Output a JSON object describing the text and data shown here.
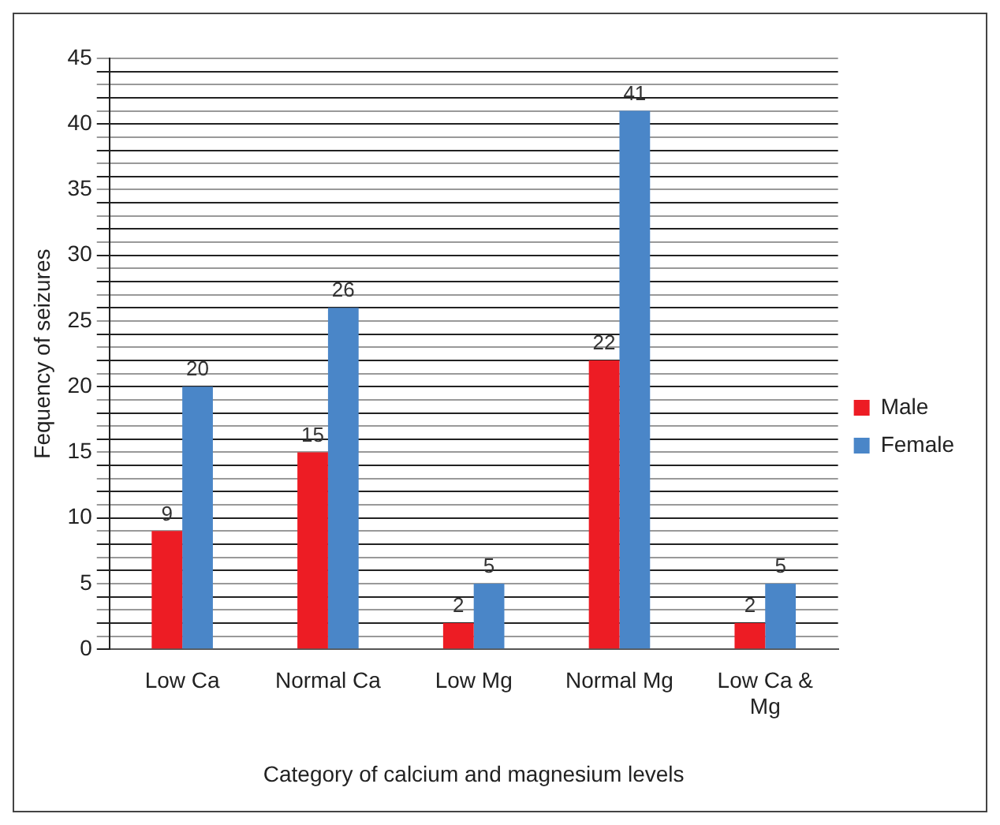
{
  "chart_data": {
    "type": "bar",
    "xlabel": "Category of calcium and magnesium levels",
    "ylabel": "Fequency of seizures",
    "categories": [
      "Low Ca",
      "Normal Ca",
      "Low Mg",
      "Normal Mg",
      "Low Ca & Mg"
    ],
    "series": [
      {
        "name": "Male",
        "color": "#ed1c24",
        "values": [
          9,
          15,
          2,
          22,
          2
        ]
      },
      {
        "name": "Female",
        "color": "#4a86c8",
        "values": [
          20,
          26,
          5,
          41,
          5
        ]
      }
    ],
    "ylim": [
      0,
      45
    ],
    "yticks": [
      0,
      {
        "value": 1,
        "label": null
      },
      {
        "value": 2,
        "label": null
      },
      {
        "value": 3,
        "label": null
      },
      {
        "value": 4,
        "label": null
      },
      5,
      {
        "value": 6,
        "label": null
      },
      {
        "value": 7,
        "label": null
      },
      {
        "value": 8,
        "label": null
      },
      {
        "value": 9,
        "label": null
      },
      10,
      {
        "value": 11,
        "label": null
      },
      {
        "value": 12,
        "label": null
      },
      {
        "value": 13,
        "label": null
      },
      {
        "value": 14,
        "label": null
      },
      15,
      {
        "value": 16,
        "label": null
      },
      {
        "value": 17,
        "label": null
      },
      {
        "value": 18,
        "label": null
      },
      {
        "value": 19,
        "label": null
      },
      20,
      {
        "value": 21,
        "label": null
      },
      {
        "value": 22,
        "label": null
      },
      {
        "value": 23,
        "label": null
      },
      {
        "value": 24,
        "label": null
      },
      25,
      {
        "value": 26,
        "label": null
      },
      {
        "value": 27,
        "label": null
      },
      {
        "value": 28,
        "label": null
      },
      {
        "value": 29,
        "label": null
      },
      30,
      {
        "value": 31,
        "label": null
      },
      {
        "value": 32,
        "label": null
      },
      {
        "value": 33,
        "label": null
      },
      {
        "value": 34,
        "label": null
      },
      35,
      {
        "value": 36,
        "label": null
      },
      {
        "value": 37,
        "label": null
      },
      {
        "value": 38,
        "label": null
      },
      {
        "value": 39,
        "label": null
      },
      40,
      {
        "value": 41,
        "label": null
      },
      {
        "value": 42,
        "label": null
      },
      {
        "value": 43,
        "label": null
      },
      {
        "value": 44,
        "label": null
      },
      45
    ],
    "grid": "y",
    "legend": "right",
    "data_labels": true
  }
}
